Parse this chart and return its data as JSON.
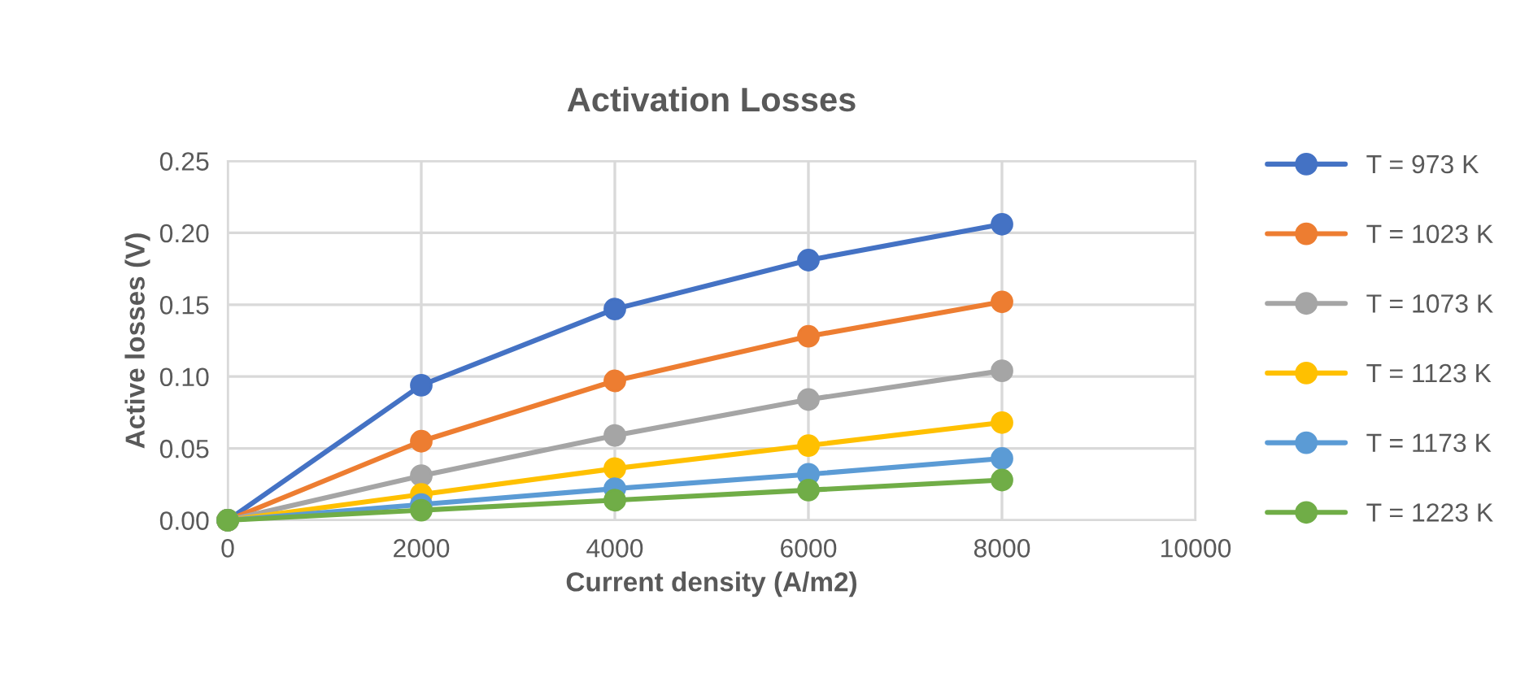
{
  "chart_data": {
    "type": "line",
    "title": "Activation Losses",
    "xlabel": "Current density (A/m2)",
    "ylabel": "Active losses (V)",
    "x": [
      0,
      2000,
      4000,
      6000,
      8000
    ],
    "series": [
      {
        "name": "T = 973 K",
        "color": "#4472c4",
        "values": [
          0,
          0.094,
          0.147,
          0.181,
          0.206
        ]
      },
      {
        "name": "T = 1023 K",
        "color": "#ed7d31",
        "values": [
          0,
          0.055,
          0.097,
          0.128,
          0.152
        ]
      },
      {
        "name": "T = 1073 K",
        "color": "#a5a5a5",
        "values": [
          0,
          0.031,
          0.059,
          0.084,
          0.104
        ]
      },
      {
        "name": "T = 1123 K",
        "color": "#ffc000",
        "values": [
          0,
          0.018,
          0.036,
          0.052,
          0.068
        ]
      },
      {
        "name": "T = 1173 K",
        "color": "#5b9bd5",
        "values": [
          0,
          0.011,
          0.022,
          0.032,
          0.043
        ]
      },
      {
        "name": "T = 1223 K",
        "color": "#70ad47",
        "values": [
          0,
          0.007,
          0.014,
          0.021,
          0.028
        ]
      }
    ],
    "xlim": [
      0,
      10000
    ],
    "xticks": [
      0,
      2000,
      4000,
      6000,
      8000,
      10000
    ],
    "ylim": [
      0,
      0.25
    ],
    "yticks": [
      {
        "value": 0,
        "label": "0.00"
      },
      {
        "value": 0.05,
        "label": "0.05"
      },
      {
        "value": 0.1,
        "label": "0.10"
      },
      {
        "value": 0.15,
        "label": "0.15"
      },
      {
        "value": 0.2,
        "label": "0.20"
      },
      {
        "value": 0.25,
        "label": "0.25"
      }
    ],
    "grid": true,
    "legend": "right",
    "marker": "circle",
    "line_style": "solid"
  }
}
